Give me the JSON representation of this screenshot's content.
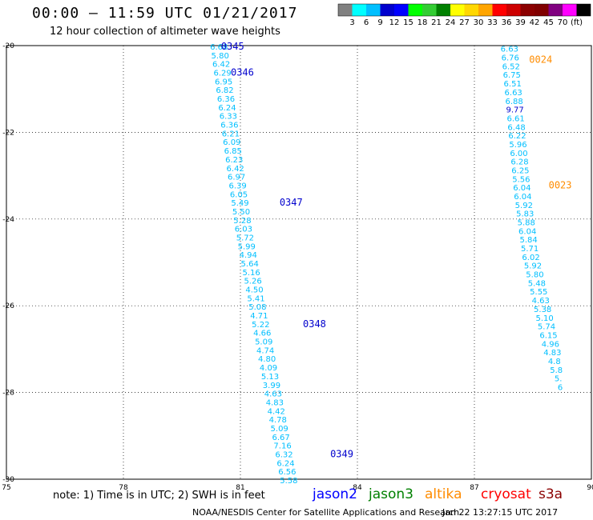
{
  "header": {
    "title": "00:00 – 11:59 UTC 01/21/2017",
    "subtitle": "12 hour collection of altimeter wave heights"
  },
  "legend_scale": {
    "colors": [
      "#808080",
      "#00ffff",
      "#00bfff",
      "#0000cd",
      "#0000ff",
      "#00ff00",
      "#32cd32",
      "#008000",
      "#ffff00",
      "#ffd700",
      "#ffa500",
      "#ff0000",
      "#cd0000",
      "#8b0000",
      "#800000",
      "#800080",
      "#ff00ff",
      "#000000"
    ],
    "labels": [
      "3",
      "6",
      "9",
      "12",
      "15",
      "18",
      "21",
      "24",
      "27",
      "30",
      "33",
      "36",
      "39",
      "42",
      "45",
      "70",
      "(ft)"
    ]
  },
  "footer": {
    "note": "note: 1) Time is in UTC; 2) SWH is in feet",
    "satellites": [
      {
        "name": "jason2",
        "color": "#0000ff"
      },
      {
        "name": "jason3",
        "color": "#008000"
      },
      {
        "name": "altika",
        "color": "#ff8c00"
      },
      {
        "name": "cryosat",
        "color": "#ff0000"
      },
      {
        "name": "s3a",
        "color": "#8b0000"
      }
    ],
    "credit": "NOAA/NESDIS Center for Satellite Applications and Research",
    "timestamp": "Jan 22 13:27:15 UTC 2017"
  },
  "chart_data": {
    "type": "scatter",
    "xlim": [
      75,
      90
    ],
    "ylim": [
      -30,
      -20
    ],
    "x_ticks": [
      "75",
      "78",
      "81",
      "84",
      "87",
      "90"
    ],
    "y_ticks": [
      "-20",
      "-22",
      "-24",
      "-26",
      "-28",
      "-30"
    ],
    "grid": true,
    "tracks": [
      {
        "color": "#00bfff",
        "points": [
          {
            "lon": 80.45,
            "lat": -20.0,
            "v": "6.68"
          },
          {
            "lon": 80.48,
            "lat": -20.2,
            "v": "5.80"
          },
          {
            "lon": 80.51,
            "lat": -20.4,
            "v": "6.42"
          },
          {
            "lon": 80.54,
            "lat": -20.6,
            "v": "6.29"
          },
          {
            "lon": 80.57,
            "lat": -20.8,
            "v": "6.95"
          },
          {
            "lon": 80.6,
            "lat": -21.0,
            "v": "6.82"
          },
          {
            "lon": 80.63,
            "lat": -21.2,
            "v": "6.36"
          },
          {
            "lon": 80.66,
            "lat": -21.4,
            "v": "6.24"
          },
          {
            "lon": 80.69,
            "lat": -21.6,
            "v": "6.33"
          },
          {
            "lon": 80.72,
            "lat": -21.8,
            "v": "6.36"
          },
          {
            "lon": 80.75,
            "lat": -22.0,
            "v": "6.21"
          },
          {
            "lon": 80.78,
            "lat": -22.2,
            "v": "6.09"
          },
          {
            "lon": 80.81,
            "lat": -22.4,
            "v": "6.85"
          },
          {
            "lon": 80.84,
            "lat": -22.6,
            "v": "6.23"
          },
          {
            "lon": 80.87,
            "lat": -22.8,
            "v": "6.42"
          },
          {
            "lon": 80.9,
            "lat": -23.0,
            "v": "6.97"
          },
          {
            "lon": 80.93,
            "lat": -23.2,
            "v": "6.39"
          },
          {
            "lon": 80.96,
            "lat": -23.4,
            "v": "6.05"
          },
          {
            "lon": 80.99,
            "lat": -23.6,
            "v": "5.49"
          },
          {
            "lon": 81.02,
            "lat": -23.8,
            "v": "5.50"
          },
          {
            "lon": 81.05,
            "lat": -24.0,
            "v": "5.28"
          },
          {
            "lon": 81.08,
            "lat": -24.2,
            "v": "6.03"
          },
          {
            "lon": 81.12,
            "lat": -24.4,
            "v": "5.72"
          },
          {
            "lon": 81.16,
            "lat": -24.6,
            "v": "5.99"
          },
          {
            "lon": 81.2,
            "lat": -24.8,
            "v": "4.94"
          },
          {
            "lon": 81.24,
            "lat": -25.0,
            "v": "5.64"
          },
          {
            "lon": 81.28,
            "lat": -25.2,
            "v": "5.16"
          },
          {
            "lon": 81.32,
            "lat": -25.4,
            "v": "5.26"
          },
          {
            "lon": 81.36,
            "lat": -25.6,
            "v": "4.50"
          },
          {
            "lon": 81.4,
            "lat": -25.8,
            "v": "5.41"
          },
          {
            "lon": 81.44,
            "lat": -26.0,
            "v": "5.08"
          },
          {
            "lon": 81.48,
            "lat": -26.2,
            "v": "4.71"
          },
          {
            "lon": 81.52,
            "lat": -26.4,
            "v": "5.22"
          },
          {
            "lon": 81.56,
            "lat": -26.6,
            "v": "4.66"
          },
          {
            "lon": 81.6,
            "lat": -26.8,
            "v": "5.09"
          },
          {
            "lon": 81.64,
            "lat": -27.0,
            "v": "4.74"
          },
          {
            "lon": 81.68,
            "lat": -27.2,
            "v": "4.80"
          },
          {
            "lon": 81.72,
            "lat": -27.4,
            "v": "4.09"
          },
          {
            "lon": 81.76,
            "lat": -27.6,
            "v": "5.13"
          },
          {
            "lon": 81.8,
            "lat": -27.8,
            "v": "3.99"
          },
          {
            "lon": 81.84,
            "lat": -28.0,
            "v": "4.63"
          },
          {
            "lon": 81.88,
            "lat": -28.2,
            "v": "4.83"
          },
          {
            "lon": 81.92,
            "lat": -28.4,
            "v": "4.42"
          },
          {
            "lon": 81.96,
            "lat": -28.6,
            "v": "4.78"
          },
          {
            "lon": 82.0,
            "lat": -28.8,
            "v": "5.09"
          },
          {
            "lon": 82.04,
            "lat": -29.0,
            "v": "6.67"
          },
          {
            "lon": 82.08,
            "lat": -29.2,
            "v": "7.16"
          },
          {
            "lon": 82.12,
            "lat": -29.4,
            "v": "6.32"
          },
          {
            "lon": 82.16,
            "lat": -29.6,
            "v": "6.24"
          },
          {
            "lon": 82.2,
            "lat": -29.8,
            "v": "6.56"
          },
          {
            "lon": 82.24,
            "lat": -30.0,
            "v": "5.58"
          }
        ]
      },
      {
        "color": "#00bfff",
        "points": [
          {
            "lon": 87.9,
            "lat": -20.05,
            "v": "6.63"
          },
          {
            "lon": 87.92,
            "lat": -20.25,
            "v": "6.76"
          },
          {
            "lon": 87.94,
            "lat": -20.45,
            "v": "6.52"
          },
          {
            "lon": 87.96,
            "lat": -20.65,
            "v": "6.75"
          },
          {
            "lon": 87.98,
            "lat": -20.85,
            "v": "6.51"
          },
          {
            "lon": 88.0,
            "lat": -21.05,
            "v": "6.63"
          },
          {
            "lon": 88.02,
            "lat": -21.25,
            "v": "6.88"
          },
          {
            "lon": 88.04,
            "lat": -21.45,
            "v": "9.77",
            "c": "#0000cd"
          },
          {
            "lon": 88.06,
            "lat": -21.65,
            "v": "6.61"
          },
          {
            "lon": 88.08,
            "lat": -21.85,
            "v": "6.48"
          },
          {
            "lon": 88.1,
            "lat": -22.05,
            "v": "6.22"
          },
          {
            "lon": 88.12,
            "lat": -22.25,
            "v": "5.96"
          },
          {
            "lon": 88.14,
            "lat": -22.45,
            "v": "6.00"
          },
          {
            "lon": 88.16,
            "lat": -22.65,
            "v": "6.28"
          },
          {
            "lon": 88.18,
            "lat": -22.85,
            "v": "6.25"
          },
          {
            "lon": 88.2,
            "lat": -23.05,
            "v": "5.56"
          },
          {
            "lon": 88.22,
            "lat": -23.25,
            "v": "6.04"
          },
          {
            "lon": 88.24,
            "lat": -23.45,
            "v": "6.04"
          },
          {
            "lon": 88.27,
            "lat": -23.65,
            "v": "5.92"
          },
          {
            "lon": 88.3,
            "lat": -23.85,
            "v": "5.83"
          },
          {
            "lon": 88.33,
            "lat": -24.05,
            "v": "5.88"
          },
          {
            "lon": 88.36,
            "lat": -24.25,
            "v": "6.04"
          },
          {
            "lon": 88.39,
            "lat": -24.45,
            "v": "5.84"
          },
          {
            "lon": 88.42,
            "lat": -24.65,
            "v": "5.71"
          },
          {
            "lon": 88.45,
            "lat": -24.85,
            "v": "6.02"
          },
          {
            "lon": 88.5,
            "lat": -25.05,
            "v": "5.92"
          },
          {
            "lon": 88.55,
            "lat": -25.25,
            "v": "5.80"
          },
          {
            "lon": 88.6,
            "lat": -25.45,
            "v": "5.48"
          },
          {
            "lon": 88.65,
            "lat": -25.65,
            "v": "5.55"
          },
          {
            "lon": 88.7,
            "lat": -25.85,
            "v": "4.63"
          },
          {
            "lon": 88.75,
            "lat": -26.05,
            "v": "5.38"
          },
          {
            "lon": 88.8,
            "lat": -26.25,
            "v": "5.10"
          },
          {
            "lon": 88.85,
            "lat": -26.45,
            "v": "5.74"
          },
          {
            "lon": 88.9,
            "lat": -26.65,
            "v": "6.15"
          },
          {
            "lon": 88.95,
            "lat": -26.85,
            "v": "4.96"
          },
          {
            "lon": 89.0,
            "lat": -27.05,
            "v": "4.83"
          },
          {
            "lon": 89.05,
            "lat": -27.25,
            "v": "4.8"
          },
          {
            "lon": 89.1,
            "lat": -27.45,
            "v": "5.8"
          },
          {
            "lon": 89.15,
            "lat": -27.65,
            "v": "5."
          },
          {
            "lon": 89.2,
            "lat": -27.85,
            "v": "6"
          }
        ]
      }
    ],
    "time_labels": [
      {
        "lon": 80.8,
        "lat": -20.0,
        "text": "0345",
        "color": "#0000cd"
      },
      {
        "lon": 81.05,
        "lat": -20.6,
        "text": "0346",
        "color": "#0000cd"
      },
      {
        "lon": 82.3,
        "lat": -23.6,
        "text": "0347",
        "color": "#0000cd"
      },
      {
        "lon": 82.9,
        "lat": -26.4,
        "text": "0348",
        "color": "#0000cd"
      },
      {
        "lon": 83.6,
        "lat": -29.4,
        "text": "0349",
        "color": "#0000cd"
      },
      {
        "lon": 88.7,
        "lat": -20.3,
        "text": "0024",
        "color": "#ff8c00"
      },
      {
        "lon": 89.2,
        "lat": -23.2,
        "text": "0023",
        "color": "#ff8c00"
      }
    ]
  }
}
